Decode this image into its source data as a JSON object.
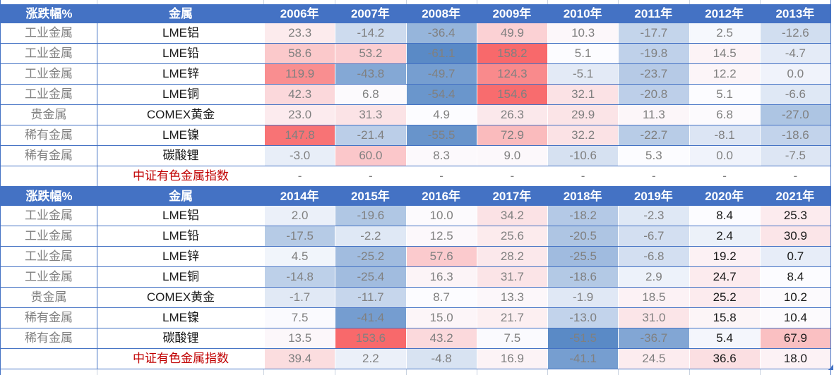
{
  "palette": {
    "header_bg": "#4472C4",
    "header_text": "#FFFFFF",
    "row_border": "#4472C4",
    "strip_line": "#C9D2DF",
    "text_gray": "#808080",
    "text_dark": "#1A1A1A",
    "index_label_red": "#C00000",
    "scale_min_color": "#5A8AC6",
    "scale_mid_color": "#FCFCFF",
    "scale_max_color": "#F8696B"
  },
  "chart_data": {
    "type": "heatmap",
    "title": "",
    "legend": "cell background: 3-color scale, blue = min, white = median, red = max, per section",
    "sections": [
      {
        "corner_label": "涨跌幅%",
        "metal_label": "金属",
        "columns": [
          "2006年",
          "2007年",
          "2008年",
          "2009年",
          "2010年",
          "2011年",
          "2012年",
          "2013年"
        ],
        "dark_text_columns": [],
        "rows": [
          {
            "category": "工业金属",
            "metal": "LME铝",
            "values": [
              23.3,
              -14.2,
              -36.4,
              49.9,
              10.3,
              -17.7,
              2.5,
              -12.6
            ]
          },
          {
            "category": "工业金属",
            "metal": "LME铅",
            "values": [
              58.6,
              53.2,
              -61.1,
              158.2,
              5.1,
              -19.8,
              14.5,
              -4.7
            ]
          },
          {
            "category": "工业金属",
            "metal": "LME锌",
            "values": [
              119.9,
              -43.8,
              -49.7,
              124.3,
              -5.1,
              -23.7,
              12.2,
              0.0
            ]
          },
          {
            "category": "工业金属",
            "metal": "LME铜",
            "values": [
              42.3,
              6.8,
              -54.4,
              154.6,
              32.1,
              -20.8,
              5.1,
              -6.6
            ]
          },
          {
            "category": "贵金属",
            "metal": "COMEX黄金",
            "values": [
              23.0,
              31.3,
              4.9,
              26.3,
              29.9,
              11.3,
              6.8,
              -27.0
            ]
          },
          {
            "category": "稀有金属",
            "metal": "LME镍",
            "values": [
              147.8,
              -21.4,
              -55.5,
              72.9,
              32.2,
              -22.7,
              -8.1,
              -18.6
            ]
          },
          {
            "category": "稀有金属",
            "metal": "碳酸锂",
            "values": [
              -3.0,
              60.0,
              8.3,
              9.0,
              -10.6,
              5.3,
              0.0,
              -7.5
            ]
          },
          {
            "category": "",
            "metal": "中证有色金属指数",
            "metal_color": "red",
            "values": [
              "-",
              "-",
              "-",
              "-",
              "-",
              "-",
              "-",
              "-"
            ]
          }
        ]
      },
      {
        "corner_label": "涨跌幅%",
        "metal_label": "金属",
        "columns": [
          "2014年",
          "2015年",
          "2016年",
          "2017年",
          "2018年",
          "2019年",
          "2020年",
          "2021年"
        ],
        "dark_text_columns": [
          6,
          7
        ],
        "rows": [
          {
            "category": "工业金属",
            "metal": "LME铝",
            "values": [
              2.0,
              -19.6,
              10.0,
              34.2,
              -18.2,
              -2.3,
              8.4,
              25.3
            ]
          },
          {
            "category": "工业金属",
            "metal": "LME铅",
            "values": [
              -17.5,
              -2.2,
              12.5,
              25.6,
              -20.5,
              -6.7,
              2.4,
              30.9
            ]
          },
          {
            "category": "工业金属",
            "metal": "LME锌",
            "values": [
              4.5,
              -25.2,
              57.6,
              28.2,
              -25.5,
              -6.8,
              19.2,
              0.7
            ]
          },
          {
            "category": "工业金属",
            "metal": "LME铜",
            "values": [
              -14.8,
              -25.4,
              16.3,
              31.7,
              -18.6,
              2.9,
              24.7,
              8.4
            ]
          },
          {
            "category": "贵金属",
            "metal": "COMEX黄金",
            "values": [
              -1.7,
              -11.7,
              8.7,
              13.3,
              -1.9,
              18.5,
              25.2,
              10.2
            ]
          },
          {
            "category": "稀有金属",
            "metal": "LME镍",
            "values": [
              7.5,
              -41.4,
              15.0,
              21.7,
              -13.0,
              31.0,
              15.8,
              10.4
            ]
          },
          {
            "category": "稀有金属",
            "metal": "碳酸锂",
            "values": [
              13.5,
              153.6,
              43.2,
              7.5,
              -51.5,
              -36.7,
              5.4,
              67.9
            ]
          },
          {
            "category": "",
            "metal": "中证有色金属指数",
            "metal_color": "red",
            "values": [
              39.4,
              2.2,
              -4.8,
              16.9,
              -41.1,
              24.5,
              36.6,
              18.0
            ]
          }
        ]
      }
    ]
  }
}
